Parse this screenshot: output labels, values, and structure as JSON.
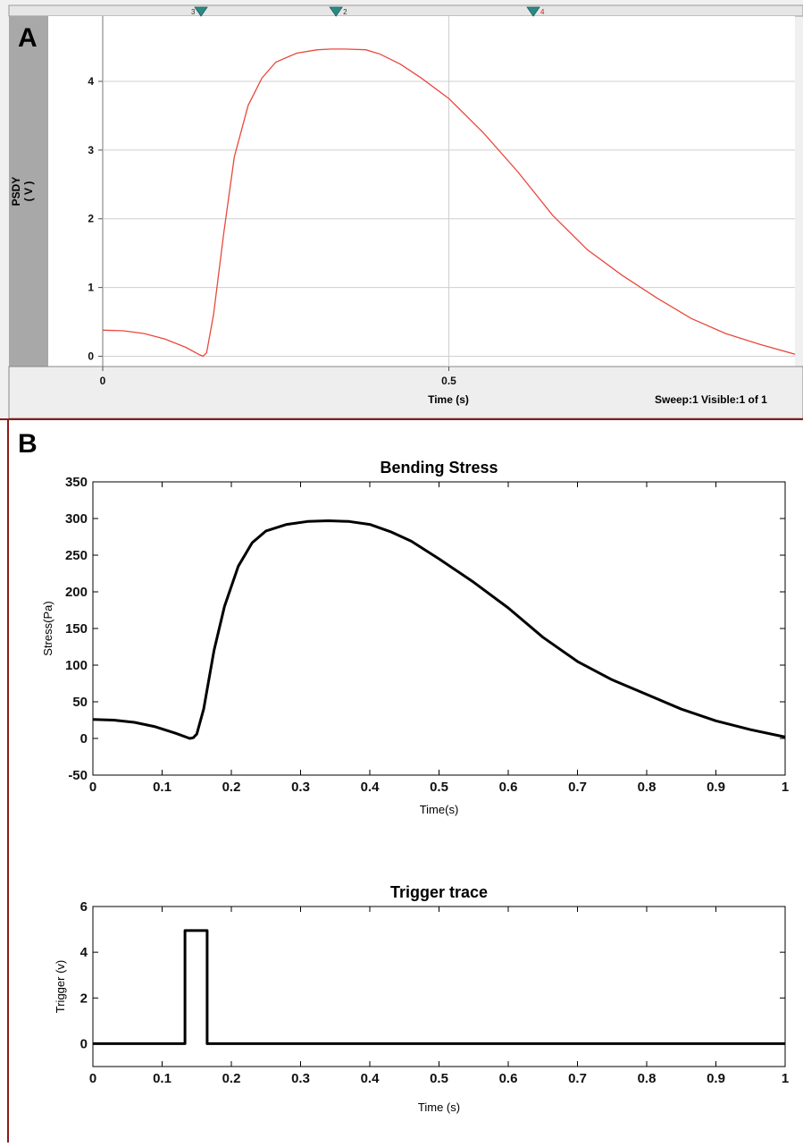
{
  "panel_a": {
    "letter": "A",
    "ylabel_line1": "PSDY",
    "ylabel_line2": "( V )",
    "xlabel": "Time (s)",
    "status": "Sweep:1 Visible:1 of 1",
    "markers": [
      {
        "label": "3",
        "x": 0.142,
        "color": "#333333"
      },
      {
        "label": "2",
        "x": 0.337,
        "color": "#333333"
      },
      {
        "label": "4",
        "x": 0.622,
        "color": "#cc2222"
      }
    ],
    "trace_color": "#e8483c"
  },
  "panel_b": {
    "letter": "B"
  },
  "chart_data": [
    {
      "type": "line",
      "panel": "A",
      "title": "",
      "xlabel": "Time (s)",
      "ylabel": "PSDY ( V )",
      "xlim": [
        0,
        1
      ],
      "ylim": [
        -0.15,
        4.95
      ],
      "xticks": [
        0,
        0.5
      ],
      "yticks": [
        0,
        1,
        2,
        3,
        4
      ],
      "grid": true,
      "series": [
        {
          "x": [
            0,
            0.03,
            0.06,
            0.09,
            0.12,
            0.14,
            0.145,
            0.15,
            0.16,
            0.175,
            0.19,
            0.21,
            0.23,
            0.25,
            0.28,
            0.31,
            0.33,
            0.35,
            0.38,
            0.4,
            0.43,
            0.46,
            0.5,
            0.55,
            0.6,
            0.65,
            0.7,
            0.75,
            0.8,
            0.85,
            0.9,
            0.95,
            1.0
          ],
          "y": [
            0.38,
            0.37,
            0.33,
            0.25,
            0.13,
            0.02,
            0.0,
            0.05,
            0.6,
            1.8,
            2.9,
            3.65,
            4.05,
            4.28,
            4.41,
            4.46,
            4.47,
            4.47,
            4.46,
            4.4,
            4.25,
            4.05,
            3.75,
            3.25,
            2.68,
            2.05,
            1.55,
            1.18,
            0.85,
            0.55,
            0.33,
            0.17,
            0.03
          ]
        }
      ]
    },
    {
      "type": "line",
      "panel": "B",
      "title": "Bending Stress",
      "xlabel": "Time(s)",
      "ylabel": "Stress(Pa)",
      "xlim": [
        0,
        1
      ],
      "ylim": [
        -50,
        350
      ],
      "xticks": [
        0,
        0.1,
        0.2,
        0.3,
        0.4,
        0.5,
        0.6,
        0.7,
        0.8,
        0.9,
        1
      ],
      "yticks": [
        -50,
        0,
        50,
        100,
        150,
        200,
        250,
        300,
        350
      ],
      "grid": false,
      "series": [
        {
          "x": [
            0,
            0.03,
            0.06,
            0.09,
            0.12,
            0.14,
            0.145,
            0.15,
            0.16,
            0.175,
            0.19,
            0.21,
            0.23,
            0.25,
            0.28,
            0.31,
            0.34,
            0.37,
            0.4,
            0.43,
            0.46,
            0.5,
            0.55,
            0.6,
            0.65,
            0.7,
            0.75,
            0.8,
            0.85,
            0.9,
            0.95,
            1.0
          ],
          "y": [
            26,
            25,
            22,
            16,
            7,
            0,
            1,
            6,
            40,
            120,
            180,
            235,
            267,
            283,
            292,
            296,
            297,
            296,
            292,
            282,
            269,
            245,
            213,
            178,
            138,
            105,
            80,
            60,
            40,
            24,
            12,
            2
          ]
        }
      ]
    },
    {
      "type": "line",
      "panel": "B",
      "title": "Trigger trace",
      "xlabel": "Time (s)",
      "ylabel": "Trigger (v)",
      "xlim": [
        0,
        1
      ],
      "ylim": [
        -1,
        6
      ],
      "xticks": [
        0,
        0.1,
        0.2,
        0.3,
        0.4,
        0.5,
        0.6,
        0.7,
        0.8,
        0.9,
        1
      ],
      "yticks": [
        0,
        2,
        4,
        6
      ],
      "grid": false,
      "series": [
        {
          "x": [
            0,
            0.133,
            0.133,
            0.165,
            0.165,
            1.0
          ],
          "y": [
            0,
            0,
            4.95,
            4.95,
            0,
            0
          ]
        }
      ]
    }
  ]
}
